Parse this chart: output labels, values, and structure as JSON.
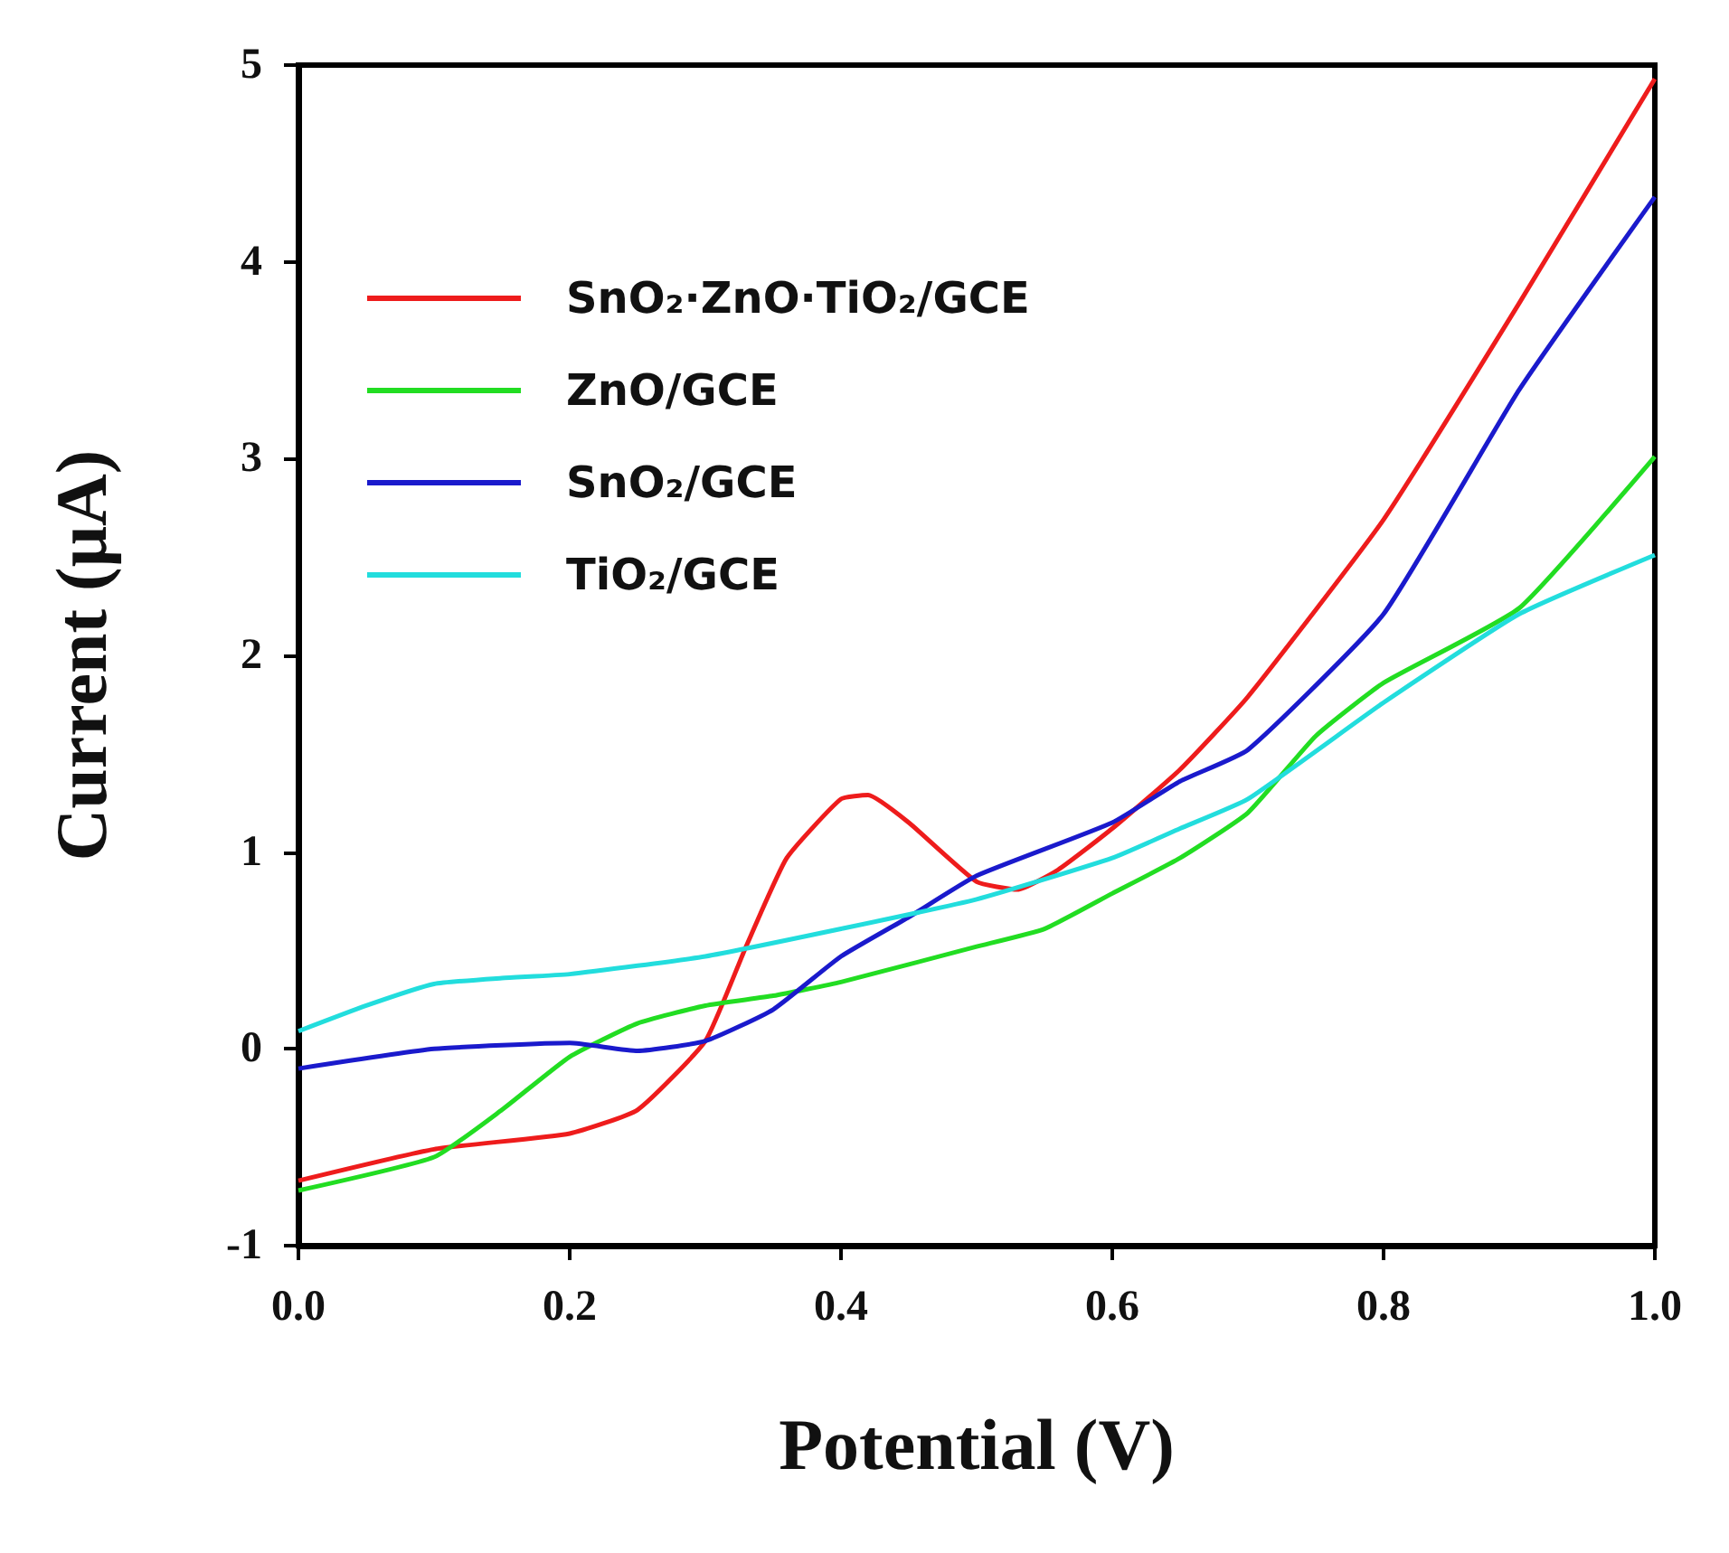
{
  "chart_data": {
    "type": "line",
    "xlabel": "Potential (V)",
    "ylabel": "Current (μA)",
    "xlim": [
      0,
      1
    ],
    "ylim": [
      -1,
      5
    ],
    "xticks": [
      {
        "value": 0,
        "label": "0.0"
      },
      {
        "value": 0.2,
        "label": "0.2"
      },
      {
        "value": 0.4,
        "label": "0.4"
      },
      {
        "value": 0.6,
        "label": "0.6"
      },
      {
        "value": 0.8,
        "label": "0.8"
      },
      {
        "value": 1,
        "label": "1.0"
      }
    ],
    "yticks": [
      -1,
      0,
      1,
      2,
      3,
      4,
      5
    ],
    "grid": false,
    "legend": "top left",
    "marker": "none",
    "line_style": "solid",
    "series": [
      {
        "name": "SnO₂·ZnO·TiO₂/GCE",
        "color": "#ee1c1c",
        "x": [
          0,
          0.1,
          0.2,
          0.25,
          0.3,
          0.33,
          0.36,
          0.4,
          0.42,
          0.45,
          0.5,
          0.53,
          0.56,
          0.6,
          0.65,
          0.7,
          0.8,
          0.9,
          1.0
        ],
        "values": [
          -0.67,
          -0.51,
          -0.43,
          -0.31,
          0.04,
          0.52,
          0.97,
          1.27,
          1.29,
          1.15,
          0.85,
          0.81,
          0.91,
          1.12,
          1.42,
          1.79,
          2.69,
          3.79,
          4.93
        ]
      },
      {
        "name": "ZnO/GCE",
        "color": "#22dd22",
        "x": [
          0,
          0.1,
          0.15,
          0.2,
          0.25,
          0.3,
          0.35,
          0.4,
          0.5,
          0.55,
          0.6,
          0.65,
          0.7,
          0.75,
          0.8,
          0.9,
          1.0
        ],
        "values": [
          -0.72,
          -0.55,
          -0.31,
          -0.04,
          0.13,
          0.22,
          0.27,
          0.34,
          0.52,
          0.61,
          0.79,
          0.97,
          1.2,
          1.59,
          1.86,
          2.24,
          3.01
        ]
      },
      {
        "name": "SnO₂/GCE",
        "color": "#1a1acc",
        "x": [
          0,
          0.1,
          0.2,
          0.25,
          0.3,
          0.35,
          0.4,
          0.45,
          0.5,
          0.6,
          0.65,
          0.7,
          0.8,
          0.9,
          1.0
        ],
        "values": [
          -0.1,
          0.0,
          0.03,
          -0.01,
          0.04,
          0.2,
          0.47,
          0.67,
          0.88,
          1.15,
          1.36,
          1.52,
          2.21,
          3.35,
          4.33
        ]
      },
      {
        "name": "TiO₂/GCE",
        "color": "#22dddd",
        "x": [
          0,
          0.05,
          0.1,
          0.15,
          0.2,
          0.3,
          0.4,
          0.5,
          0.6,
          0.65,
          0.7,
          0.8,
          0.9,
          1.0
        ],
        "values": [
          0.09,
          0.22,
          0.33,
          0.36,
          0.38,
          0.47,
          0.61,
          0.76,
          0.97,
          1.12,
          1.27,
          1.76,
          2.21,
          2.51
        ]
      }
    ]
  }
}
